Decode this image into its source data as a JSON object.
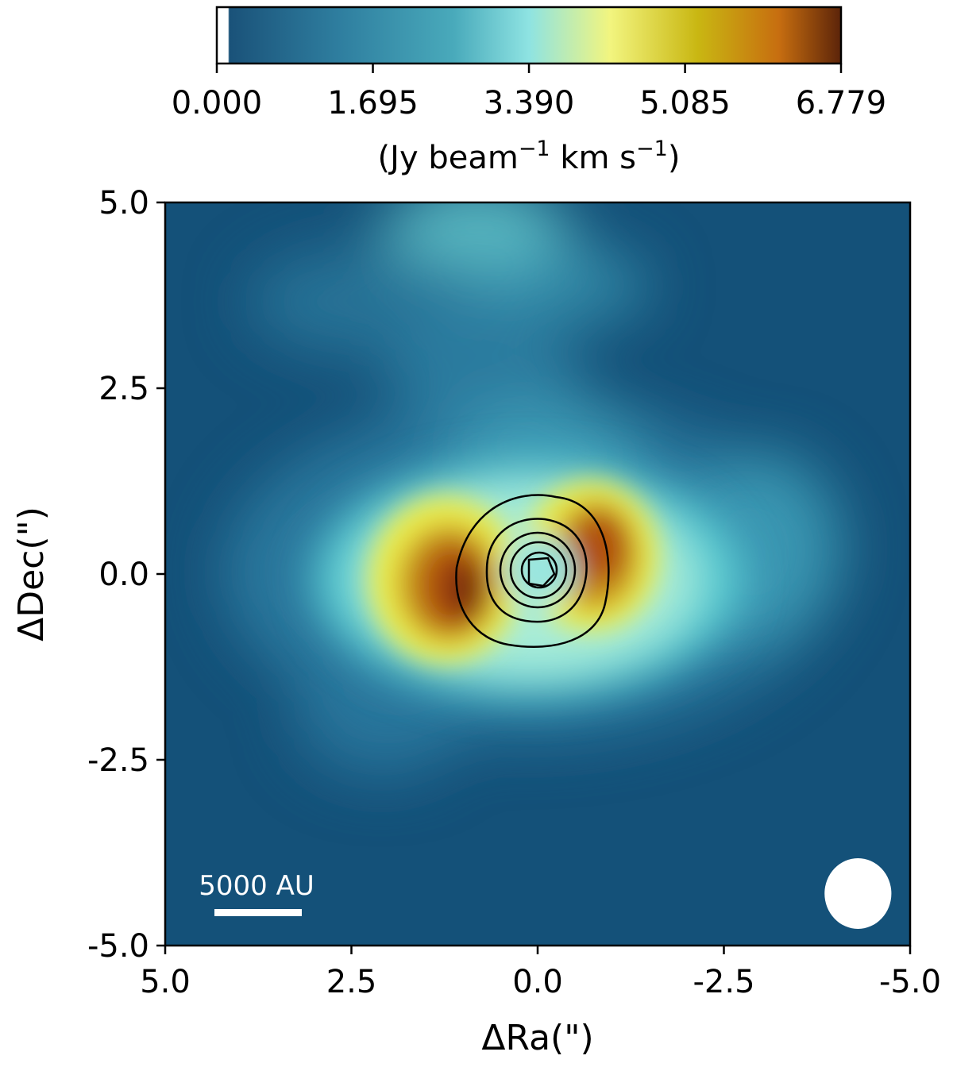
{
  "chart_data": {
    "type": "heatmap",
    "title": "",
    "xlabel": "ΔRa(\")",
    "ylabel": "ΔDec(\")",
    "xlim": [
      5.0,
      -5.0
    ],
    "ylim": [
      -5.0,
      5.0
    ],
    "x_ticks": [
      5.0,
      2.5,
      0.0,
      -2.5,
      -5.0
    ],
    "y_ticks": [
      5.0,
      2.5,
      0.0,
      -2.5,
      -5.0
    ],
    "x_tick_labels": [
      "5.0",
      "2.5",
      "0.0",
      "-2.5",
      "-5.0"
    ],
    "y_tick_labels": [
      "5.0",
      "2.5",
      "0.0",
      "-2.5",
      "-5.0"
    ],
    "colorbar": {
      "label_main": "(Jy beam",
      "label_sup1": "−1",
      "label_mid": " km s",
      "label_sup2": "−1",
      "label_end": ")",
      "min": 0.0,
      "max": 6.779,
      "ticks": [
        0.0,
        1.695,
        3.39,
        5.085,
        6.779
      ],
      "tick_labels": [
        "0.000",
        "1.695",
        "3.390",
        "5.085",
        "6.779"
      ],
      "position": "top",
      "colors": [
        "#ffffff",
        "#1a5279",
        "#2f7fa0",
        "#49aabb",
        "#8ee3e2",
        "#f2f57f",
        "#c9b712",
        "#c76e10",
        "#5c2409"
      ]
    },
    "background_color": "#145179",
    "emission_peaks": [
      {
        "x": 1.2,
        "y": -0.1,
        "value": 6.7
      },
      {
        "x": -0.9,
        "y": 0.5,
        "value": 6.2
      }
    ],
    "contours": {
      "color": "#000000",
      "center": [
        0.0,
        0.05
      ],
      "levels": 5
    },
    "scale_bar": {
      "label": "5000 AU",
      "color": "#ffffff"
    },
    "beam": {
      "x": -4.3,
      "y": -4.3,
      "major": 0.95,
      "minor": 0.78,
      "color": "#ffffff"
    }
  }
}
